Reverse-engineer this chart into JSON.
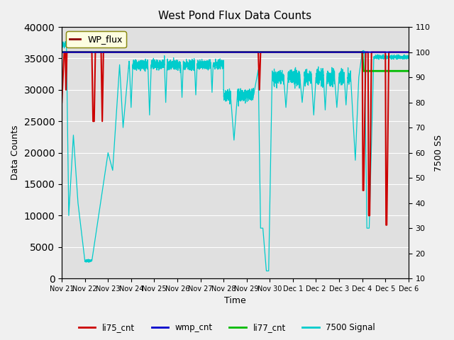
{
  "title": "West Pond Flux Data Counts",
  "xlabel": "Time",
  "ylabel_left": "Data Counts",
  "ylabel_right": "7500 SS",
  "legend_label": "WP_flux",
  "ylim_left": [
    0,
    40000
  ],
  "ylim_right": [
    10,
    110
  ],
  "yticks_left": [
    0,
    5000,
    10000,
    15000,
    20000,
    25000,
    30000,
    35000,
    40000
  ],
  "yticks_right": [
    10,
    20,
    30,
    40,
    50,
    60,
    70,
    80,
    90,
    100,
    110
  ],
  "background_color": "#e8e8e8",
  "fig_background": "#f5f5f5",
  "series_colors": {
    "li75_cnt": "#cc0000",
    "wmp_cnt": "#0000cc",
    "li77_cnt": "#00bb00",
    "signal_7500": "#00cccc"
  },
  "x_tick_labels": [
    "Nov 21",
    "Nov 22",
    "Nov 23",
    "Nov 24",
    "Nov 25",
    "Nov 26",
    "Nov 27",
    "Nov 28",
    "Nov 29",
    "Nov 30",
    "Dec 1",
    "Dec 2",
    "Dec 3",
    "Dec 4",
    "Dec 5",
    "Dec 6"
  ],
  "n_days": 16
}
